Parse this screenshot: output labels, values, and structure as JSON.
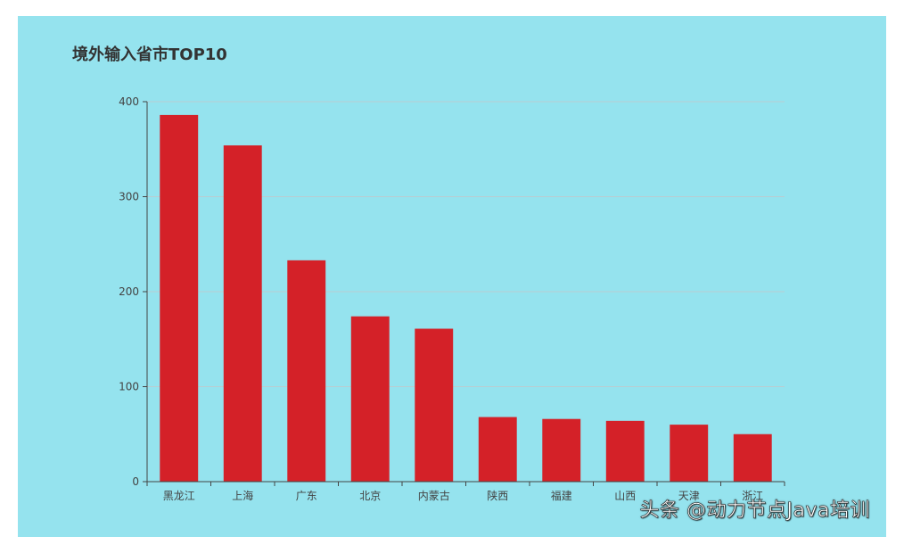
{
  "chart_data": {
    "type": "bar",
    "title": "境外输入省市TOP10",
    "categories": [
      "黑龙江",
      "上海",
      "广东",
      "北京",
      "内蒙古",
      "陕西",
      "福建",
      "山西",
      "天津",
      "浙江"
    ],
    "values": [
      386,
      354,
      233,
      174,
      161,
      68,
      66,
      64,
      60,
      50
    ],
    "xlabel": "",
    "ylabel": "",
    "ylim": [
      0,
      400
    ],
    "yticks": [
      0,
      100,
      200,
      300,
      400
    ],
    "grid": true,
    "legend": "none"
  },
  "colors": {
    "background": "#95e3ee",
    "bar": "#d42128",
    "gridline": "#b9cdd1",
    "axis": "#444444"
  },
  "watermark": "头条 @动力节点Java培训"
}
